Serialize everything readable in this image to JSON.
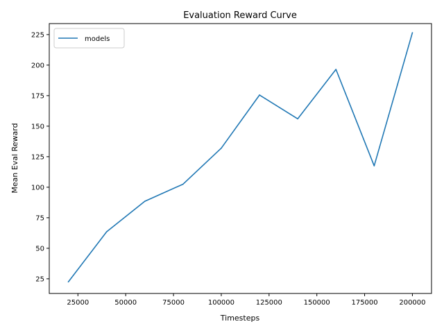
{
  "chart_data": {
    "type": "line",
    "title": "Evaluation Reward Curve",
    "xlabel": "Timesteps",
    "ylabel": "Mean Eval Reward",
    "xlim": [
      10000,
      210000
    ],
    "ylim": [
      13,
      234
    ],
    "xticks": [
      25000,
      50000,
      75000,
      100000,
      125000,
      150000,
      175000,
      200000
    ],
    "yticks": [
      25,
      50,
      75,
      100,
      125,
      150,
      175,
      200,
      225
    ],
    "grid": false,
    "legend": "upper-left",
    "series": [
      {
        "name": "models",
        "color": "#1f77b4",
        "x": [
          20000,
          40000,
          60000,
          80000,
          100000,
          120000,
          140000,
          160000,
          180000,
          200000
        ],
        "y": [
          22.5,
          63.5,
          88.5,
          102.5,
          132,
          175.5,
          156,
          196.5,
          117.5,
          226.5
        ]
      }
    ]
  }
}
